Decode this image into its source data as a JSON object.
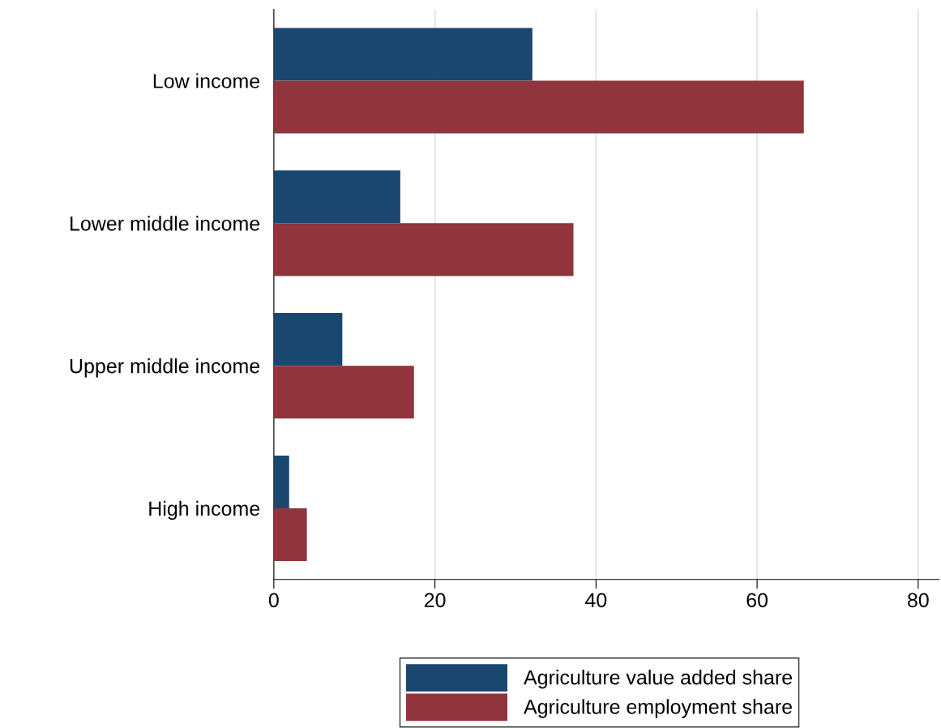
{
  "chart_data": {
    "type": "bar",
    "orientation": "horizontal",
    "categories": [
      "Low income",
      "Lower middle income",
      "Upper middle income",
      "High income"
    ],
    "series": [
      {
        "name": "Agriculture value added share",
        "color": "#1a476f",
        "values": [
          32.1,
          15.7,
          8.5,
          1.9
        ]
      },
      {
        "name": "Agriculture employment share",
        "color": "#90353b",
        "values": [
          65.8,
          37.2,
          17.4,
          4.1
        ]
      }
    ],
    "xlim": [
      0,
      82.6
    ],
    "xticks": [
      0,
      20,
      40,
      60,
      80
    ],
    "grid": "x",
    "legend": "bottom"
  }
}
